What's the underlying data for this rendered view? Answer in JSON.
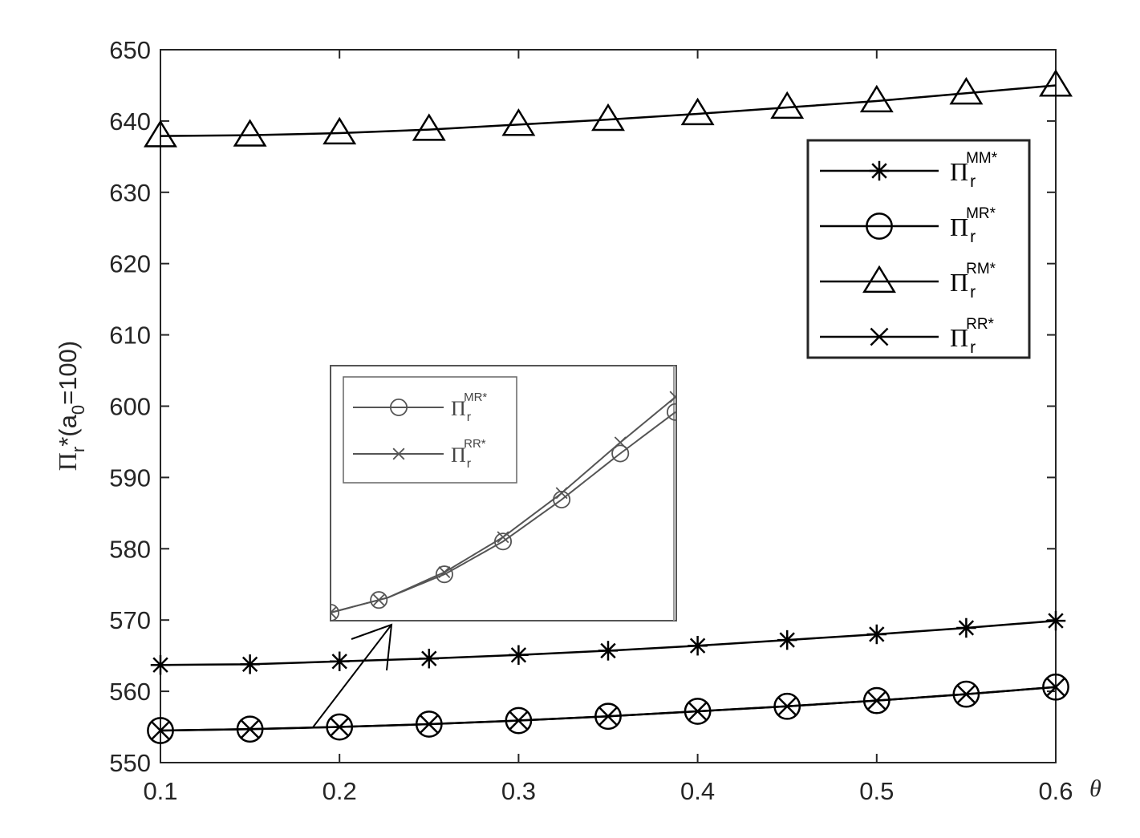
{
  "chart_data": {
    "type": "line",
    "xlabel": "θ",
    "ylabel": {
      "symbol": "Π",
      "sub": "r",
      "rest": "*(a",
      "rest_sub": "0",
      "rest_end": "=100)"
    },
    "xlim": [
      0.1,
      0.6
    ],
    "ylim": [
      550,
      650
    ],
    "xticks": [
      "0.1",
      "0.2",
      "0.3",
      "0.4",
      "0.5",
      "0.6"
    ],
    "yticks": [
      "550",
      "560",
      "570",
      "580",
      "590",
      "600",
      "610",
      "620",
      "630",
      "640",
      "650"
    ],
    "x": [
      0.1,
      0.15,
      0.2,
      0.25,
      0.3,
      0.35,
      0.4,
      0.45,
      0.5,
      0.55,
      0.6
    ],
    "legend_position": "top-right",
    "series": [
      {
        "name": "Π_r^MM*",
        "symbol": "Π",
        "sub": "r",
        "sup": "MM*",
        "marker": "asterisk",
        "values": [
          563.7,
          563.8,
          564.2,
          564.6,
          565.1,
          565.7,
          566.4,
          567.2,
          568.0,
          568.9,
          569.9
        ]
      },
      {
        "name": "Π_r^MR*",
        "symbol": "Π",
        "sub": "r",
        "sup": "MR*",
        "marker": "circle",
        "values": [
          554.5,
          554.7,
          555.0,
          555.4,
          555.9,
          556.5,
          557.2,
          557.9,
          558.7,
          559.6,
          560.6
        ]
      },
      {
        "name": "Π_r^RM*",
        "symbol": "Π",
        "sub": "r",
        "sup": "RM*",
        "marker": "triangle",
        "values": [
          637.9,
          638.0,
          638.3,
          638.8,
          639.5,
          640.2,
          641.0,
          641.9,
          642.8,
          643.9,
          645.0
        ]
      },
      {
        "name": "Π_r^RR*",
        "symbol": "Π",
        "sub": "r",
        "sup": "RR*",
        "marker": "x",
        "values": [
          554.5,
          554.7,
          555.0,
          555.4,
          555.9,
          556.5,
          557.2,
          557.9,
          558.7,
          559.6,
          560.6
        ]
      }
    ],
    "inset": {
      "legend": [
        {
          "symbol": "Π",
          "sub": "r",
          "sup": "MR*",
          "marker": "circle"
        },
        {
          "symbol": "Π",
          "sub": "r",
          "sup": "RR*",
          "marker": "x"
        }
      ],
      "mr_values": [
        0.0,
        0.07,
        0.18,
        0.33,
        0.52,
        0.73,
        0.93
      ],
      "rr_values": [
        0.0,
        0.07,
        0.19,
        0.35,
        0.55,
        0.78,
        1.0
      ]
    }
  }
}
